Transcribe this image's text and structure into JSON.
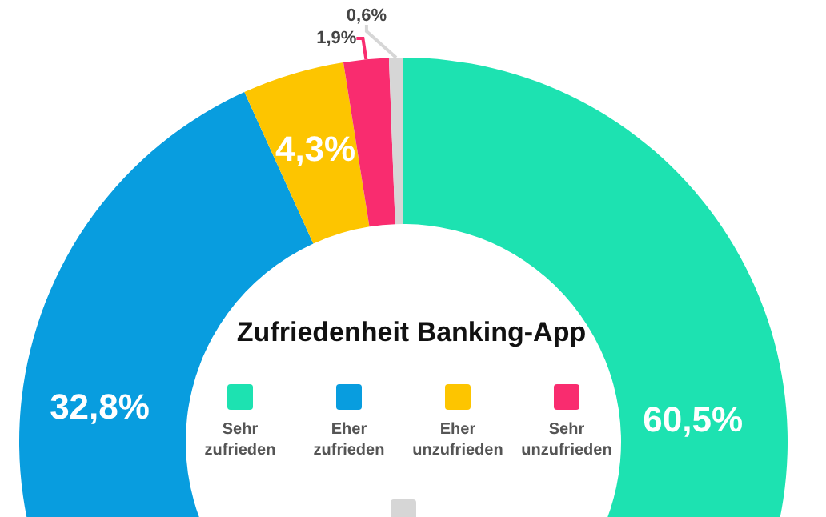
{
  "chart_data": {
    "type": "donut",
    "title": "Zufriedenheit Banking-App",
    "categories": [
      "Sehr zufrieden",
      "Eher zufrieden",
      "Eher unzufrieden",
      "Sehr unzufrieden",
      null
    ],
    "values": [
      60.5,
      32.8,
      4.3,
      1.9,
      0.6
    ],
    "colors": [
      "#1de2b1",
      "#089ddf",
      "#fdc500",
      "#f92c6f",
      "#d6d6d6"
    ],
    "value_labels": [
      "60,5%",
      "32,8%",
      "4,3%",
      "1,9%",
      "0,6%"
    ],
    "legend": "center"
  }
}
